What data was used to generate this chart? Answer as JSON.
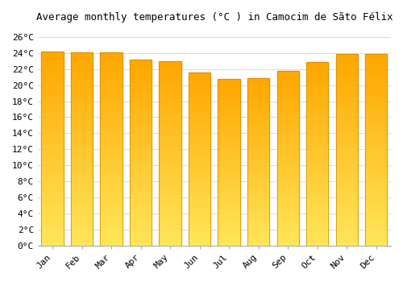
{
  "title": "Average monthly temperatures (°C ) in Camocim de Sãto Félix",
  "months": [
    "Jan",
    "Feb",
    "Mar",
    "Apr",
    "May",
    "Jun",
    "Jul",
    "Aug",
    "Sep",
    "Oct",
    "Nov",
    "Dec"
  ],
  "values": [
    24.2,
    24.1,
    24.1,
    23.2,
    23.0,
    21.6,
    20.8,
    20.9,
    21.8,
    22.9,
    23.9,
    23.9
  ],
  "bar_color_top": "#FFA500",
  "bar_color_bottom": "#FFD080",
  "bar_edge_color": "#CC8800",
  "background_color": "#FFFFFF",
  "grid_color": "#DDDDDD",
  "ylim": [
    0,
    27
  ],
  "yticks": [
    0,
    2,
    4,
    6,
    8,
    10,
    12,
    14,
    16,
    18,
    20,
    22,
    24,
    26
  ],
  "title_fontsize": 9,
  "tick_fontsize": 8
}
